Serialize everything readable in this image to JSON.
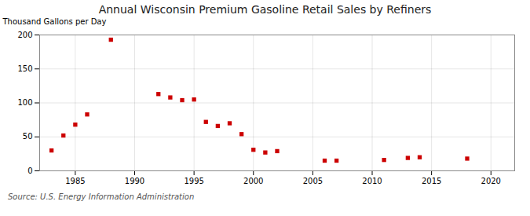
{
  "chart_data": {
    "type": "scatter",
    "title": "Annual Wisconsin Premium Gasoline Retail Sales by Refiners",
    "ylabel": "Thousand Gallons per Day",
    "source": "Source: U.S. Energy Information Administration",
    "x": [
      1983,
      1984,
      1985,
      1986,
      1988,
      1992,
      1993,
      1994,
      1995,
      1996,
      1997,
      1998,
      1999,
      2000,
      2001,
      2002,
      2006,
      2007,
      2011,
      2013,
      2014,
      2018
    ],
    "values": [
      30,
      52,
      68,
      83,
      193,
      113,
      108,
      104,
      105,
      72,
      66,
      70,
      54,
      31,
      27,
      29,
      15,
      15,
      16,
      19,
      20,
      18
    ],
    "color": "#cc0000",
    "marker": "square",
    "xlim": [
      1982,
      2022
    ],
    "ylim": [
      0,
      200
    ],
    "xticks": [
      1985,
      1990,
      1995,
      2000,
      2005,
      2010,
      2015,
      2020
    ],
    "yticks": [
      0,
      50,
      100,
      150,
      200
    ],
    "grid": true
  }
}
